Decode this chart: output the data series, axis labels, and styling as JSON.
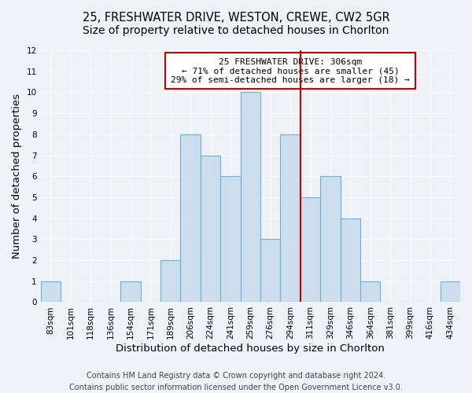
{
  "title": "25, FRESHWATER DRIVE, WESTON, CREWE, CW2 5GR",
  "subtitle": "Size of property relative to detached houses in Chorlton",
  "xlabel": "Distribution of detached houses by size in Chorlton",
  "ylabel": "Number of detached properties",
  "categories": [
    "83sqm",
    "101sqm",
    "118sqm",
    "136sqm",
    "154sqm",
    "171sqm",
    "189sqm",
    "206sqm",
    "224sqm",
    "241sqm",
    "259sqm",
    "276sqm",
    "294sqm",
    "311sqm",
    "329sqm",
    "346sqm",
    "364sqm",
    "381sqm",
    "399sqm",
    "416sqm",
    "434sqm"
  ],
  "values": [
    1,
    0,
    0,
    0,
    1,
    0,
    2,
    8,
    7,
    6,
    10,
    3,
    8,
    5,
    6,
    4,
    1,
    0,
    0,
    0,
    1
  ],
  "bar_color": "#ccdded",
  "bar_edge_color": "#6aafd6",
  "vline_color": "#cc0000",
  "vline_pos": 12.5,
  "annotation_title": "25 FRESHWATER DRIVE: 306sqm",
  "annotation_line1": "← 71% of detached houses are smaller (45)",
  "annotation_line2": "29% of semi-detached houses are larger (18) →",
  "annotation_box_color": "#ffffff",
  "annotation_border_color": "#cc0000",
  "ylim": [
    0,
    12
  ],
  "yticks": [
    0,
    1,
    2,
    3,
    4,
    5,
    6,
    7,
    8,
    9,
    10,
    11,
    12
  ],
  "footer_line1": "Contains HM Land Registry data © Crown copyright and database right 2024.",
  "footer_line2": "Contains public sector information licensed under the Open Government Licence v3.0.",
  "bg_color": "#eef2f7",
  "grid_color": "#ffffff",
  "title_fontsize": 10.5,
  "axis_label_fontsize": 9.5,
  "tick_fontsize": 7.5,
  "annotation_fontsize": 8,
  "footer_fontsize": 7
}
